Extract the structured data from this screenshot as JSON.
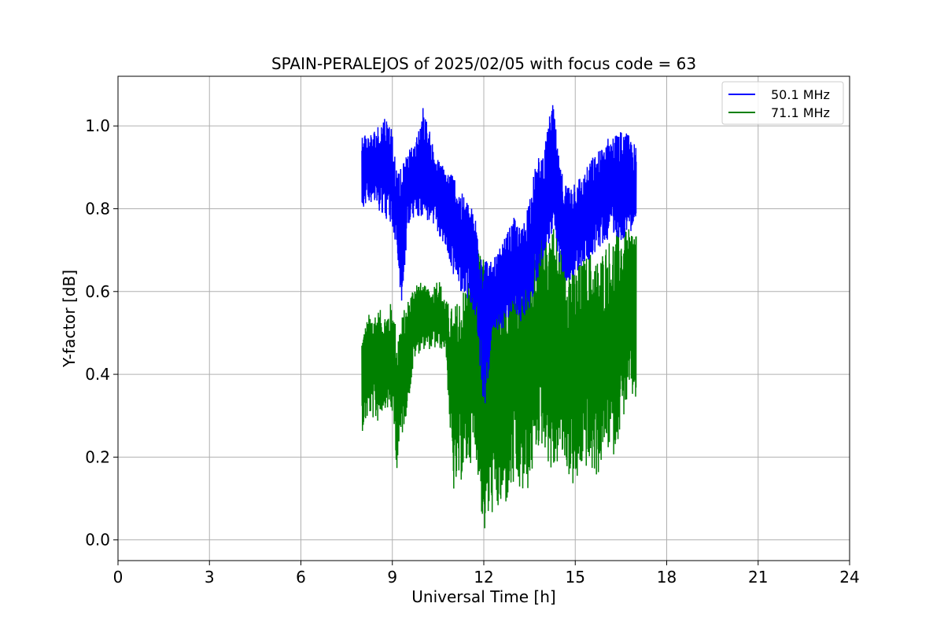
{
  "chart_data": {
    "type": "line",
    "title": "SPAIN-PERALEJOS of 2025/02/05 with focus code = 63",
    "xlabel": "Universal Time [h]",
    "ylabel": "Y-factor [dB]",
    "xlim": [
      0,
      24
    ],
    "ylim": [
      -0.05,
      1.12
    ],
    "xticks": [
      0,
      3,
      6,
      9,
      12,
      15,
      18,
      21,
      24
    ],
    "xtick_labels": [
      "0",
      "3",
      "6",
      "9",
      "12",
      "15",
      "18",
      "21",
      "24"
    ],
    "yticks": [
      0.0,
      0.2,
      0.4,
      0.6,
      0.8,
      1.0
    ],
    "ytick_labels": [
      "0.0",
      "0.2",
      "0.4",
      "0.6",
      "0.8",
      "1.0"
    ],
    "grid": true,
    "legend_position": "top-right",
    "series": [
      {
        "name": "50.1 MHz",
        "color": "#0000ff",
        "x": [
          8.0,
          8.25,
          8.5,
          8.75,
          9.0,
          9.15,
          9.3,
          9.5,
          9.75,
          10.0,
          10.25,
          10.5,
          10.75,
          11.0,
          11.25,
          11.5,
          11.75,
          12.0,
          12.25,
          12.5,
          12.75,
          13.0,
          13.25,
          13.5,
          13.75,
          14.0,
          14.25,
          14.5,
          14.75,
          15.0,
          15.25,
          15.5,
          15.75,
          16.0,
          16.25,
          16.5,
          16.75,
          17.0
        ],
        "min": [
          0.8,
          0.82,
          0.8,
          0.78,
          0.75,
          0.7,
          0.55,
          0.75,
          0.78,
          0.78,
          0.76,
          0.74,
          0.7,
          0.64,
          0.6,
          0.58,
          0.52,
          0.3,
          0.46,
          0.5,
          0.52,
          0.55,
          0.52,
          0.56,
          0.62,
          0.7,
          0.72,
          0.66,
          0.62,
          0.64,
          0.66,
          0.68,
          0.7,
          0.72,
          0.74,
          0.72,
          0.74,
          0.76
        ],
        "max": [
          0.99,
          0.98,
          1.0,
          1.03,
          1.0,
          0.88,
          0.9,
          0.94,
          0.96,
          1.05,
          0.98,
          0.92,
          0.9,
          0.89,
          0.84,
          0.82,
          0.78,
          0.7,
          0.67,
          0.7,
          0.74,
          0.78,
          0.75,
          0.84,
          0.92,
          0.95,
          1.07,
          0.9,
          0.86,
          0.88,
          0.88,
          0.92,
          0.94,
          0.97,
          0.98,
          0.99,
          0.98,
          0.95
        ]
      },
      {
        "name": "71.1 MHz",
        "color": "#008000",
        "x": [
          8.0,
          8.25,
          8.5,
          8.75,
          9.0,
          9.15,
          9.3,
          9.5,
          9.75,
          10.0,
          10.25,
          10.5,
          10.75,
          11.0,
          11.25,
          11.5,
          11.75,
          12.0,
          12.25,
          12.5,
          12.75,
          13.0,
          13.25,
          13.5,
          13.75,
          14.0,
          14.25,
          14.5,
          14.75,
          15.0,
          15.25,
          15.5,
          15.75,
          16.0,
          16.25,
          16.5,
          16.75,
          17.0
        ],
        "min": [
          0.26,
          0.3,
          0.28,
          0.32,
          0.3,
          0.17,
          0.24,
          0.32,
          0.44,
          0.46,
          0.46,
          0.46,
          0.46,
          0.11,
          0.14,
          0.18,
          0.2,
          0.0,
          0.06,
          0.06,
          0.08,
          0.12,
          0.1,
          0.12,
          0.22,
          0.22,
          0.14,
          0.2,
          0.16,
          0.11,
          0.18,
          0.16,
          0.15,
          0.22,
          0.2,
          0.27,
          0.34,
          0.33
        ],
        "max": [
          0.5,
          0.55,
          0.56,
          0.55,
          0.58,
          0.5,
          0.54,
          0.58,
          0.63,
          0.62,
          0.6,
          0.64,
          0.58,
          0.56,
          0.6,
          0.64,
          0.71,
          0.68,
          0.62,
          0.64,
          0.72,
          0.7,
          0.68,
          0.72,
          0.76,
          0.78,
          0.78,
          0.72,
          0.7,
          0.66,
          0.68,
          0.7,
          0.68,
          0.72,
          0.74,
          0.76,
          0.75,
          0.77
        ]
      }
    ]
  }
}
